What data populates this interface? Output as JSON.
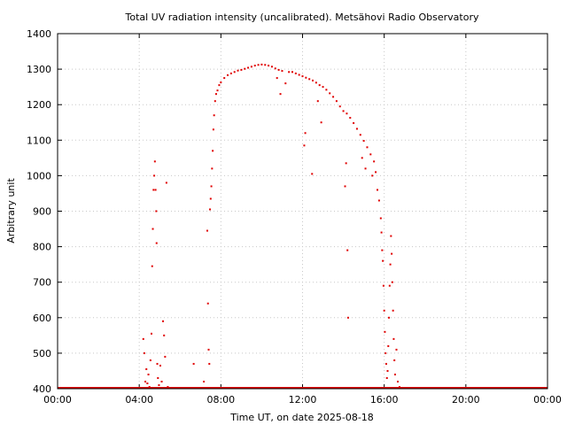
{
  "chart_data": {
    "type": "scatter",
    "title": "Total UV radiation intensity (uncalibrated). Metsähovi Radio Observatory",
    "xlabel": "Time UT, on date 2025-08-18",
    "ylabel": "Arbitrary unit",
    "xlim": [
      "00:00",
      "24:00"
    ],
    "ylim": [
      400,
      1400
    ],
    "x_ticks": [
      "00:00",
      "04:00",
      "08:00",
      "12:00",
      "16:00",
      "20:00",
      "00:00"
    ],
    "y_ticks": [
      "400",
      "500",
      "600",
      "700",
      "800",
      "900",
      "1000",
      "1100",
      "1200",
      "1300",
      "1400"
    ],
    "grid": true,
    "marker_color": "#e00000",
    "series": [
      {
        "points": [
          [
            "04:12",
            540
          ],
          [
            "04:15",
            500
          ],
          [
            "04:18",
            420
          ],
          [
            "04:21",
            455
          ],
          [
            "04:24",
            415
          ],
          [
            "04:27",
            440
          ],
          [
            "04:30",
            405
          ],
          [
            "04:33",
            480
          ],
          [
            "04:36",
            555
          ],
          [
            "04:38",
            745
          ],
          [
            "04:40",
            850
          ],
          [
            "04:42",
            960
          ],
          [
            "04:44",
            1000
          ],
          [
            "04:46",
            1040
          ],
          [
            "04:48",
            960
          ],
          [
            "04:50",
            900
          ],
          [
            "04:51",
            810
          ],
          [
            "04:53",
            470
          ],
          [
            "04:55",
            430
          ],
          [
            "04:58",
            410
          ],
          [
            "05:02",
            465
          ],
          [
            "05:06",
            420
          ],
          [
            "05:10",
            590
          ],
          [
            "05:13",
            550
          ],
          [
            "05:16",
            490
          ],
          [
            "05:20",
            980
          ],
          [
            "05:24",
            405
          ],
          [
            "06:40",
            470
          ],
          [
            "07:10",
            420
          ],
          [
            "07:20",
            845
          ],
          [
            "07:22",
            640
          ],
          [
            "07:24",
            510
          ],
          [
            "07:26",
            470
          ],
          [
            "07:28",
            905
          ],
          [
            "07:30",
            935
          ],
          [
            "07:32",
            970
          ],
          [
            "07:34",
            1020
          ],
          [
            "07:36",
            1070
          ],
          [
            "07:38",
            1130
          ],
          [
            "07:40",
            1170
          ],
          [
            "07:43",
            1210
          ],
          [
            "07:46",
            1230
          ],
          [
            "07:50",
            1240
          ],
          [
            "07:55",
            1255
          ],
          [
            "08:00",
            1263
          ],
          [
            "08:10",
            1275
          ],
          [
            "08:20",
            1283
          ],
          [
            "08:30",
            1288
          ],
          [
            "08:40",
            1292
          ],
          [
            "08:50",
            1296
          ],
          [
            "09:00",
            1298
          ],
          [
            "09:10",
            1301
          ],
          [
            "09:20",
            1304
          ],
          [
            "09:30",
            1307
          ],
          [
            "09:40",
            1310
          ],
          [
            "09:50",
            1312
          ],
          [
            "10:00",
            1313
          ],
          [
            "10:10",
            1312
          ],
          [
            "10:20",
            1310
          ],
          [
            "10:30",
            1307
          ],
          [
            "10:40",
            1302
          ],
          [
            "10:45",
            1275
          ],
          [
            "10:50",
            1298
          ],
          [
            "10:55",
            1230
          ],
          [
            "11:00",
            1295
          ],
          [
            "11:10",
            1260
          ],
          [
            "11:20",
            1292
          ],
          [
            "11:30",
            1292
          ],
          [
            "11:40",
            1288
          ],
          [
            "11:50",
            1284
          ],
          [
            "12:00",
            1280
          ],
          [
            "12:05",
            1085
          ],
          [
            "12:08",
            1120
          ],
          [
            "12:10",
            1276
          ],
          [
            "12:20",
            1272
          ],
          [
            "12:28",
            1005
          ],
          [
            "12:30",
            1268
          ],
          [
            "12:40",
            1262
          ],
          [
            "12:45",
            1210
          ],
          [
            "12:50",
            1255
          ],
          [
            "12:55",
            1150
          ],
          [
            "13:00",
            1250
          ],
          [
            "13:10",
            1242
          ],
          [
            "13:20",
            1232
          ],
          [
            "13:30",
            1222
          ],
          [
            "13:40",
            1210
          ],
          [
            "13:50",
            1195
          ],
          [
            "14:00",
            1182
          ],
          [
            "14:05",
            970
          ],
          [
            "14:08",
            1035
          ],
          [
            "14:10",
            1175
          ],
          [
            "14:12",
            790
          ],
          [
            "14:14",
            600
          ],
          [
            "14:20",
            1163
          ],
          [
            "14:30",
            1148
          ],
          [
            "14:40",
            1132
          ],
          [
            "14:50",
            1115
          ],
          [
            "14:55",
            1050
          ],
          [
            "15:00",
            1098
          ],
          [
            "15:05",
            1020
          ],
          [
            "15:10",
            1080
          ],
          [
            "15:20",
            1060
          ],
          [
            "15:25",
            1000
          ],
          [
            "15:30",
            1040
          ],
          [
            "15:35",
            1010
          ],
          [
            "15:40",
            960
          ],
          [
            "15:45",
            930
          ],
          [
            "15:50",
            880
          ],
          [
            "15:52",
            840
          ],
          [
            "15:54",
            790
          ],
          [
            "15:56",
            760
          ],
          [
            "15:58",
            690
          ],
          [
            "16:00",
            620
          ],
          [
            "16:02",
            560
          ],
          [
            "16:04",
            500
          ],
          [
            "16:06",
            470
          ],
          [
            "16:08",
            430
          ],
          [
            "16:10",
            450
          ],
          [
            "16:12",
            520
          ],
          [
            "16:14",
            600
          ],
          [
            "16:16",
            690
          ],
          [
            "16:18",
            750
          ],
          [
            "16:20",
            830
          ],
          [
            "16:22",
            780
          ],
          [
            "16:24",
            700
          ],
          [
            "16:26",
            620
          ],
          [
            "16:28",
            540
          ],
          [
            "16:30",
            480
          ],
          [
            "16:32",
            440
          ],
          [
            "16:36",
            510
          ],
          [
            "16:40",
            420
          ],
          [
            "16:45",
            405
          ]
        ]
      }
    ]
  }
}
